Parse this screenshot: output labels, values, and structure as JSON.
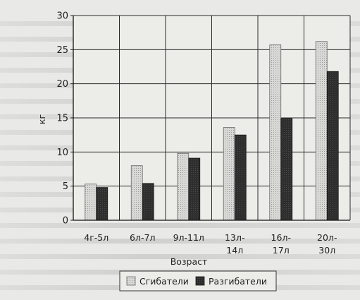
{
  "chart_data": {
    "type": "bar",
    "title": "",
    "xlabel": "Возраст",
    "ylabel": "кг",
    "ylim": [
      0,
      30
    ],
    "yticks": [
      0,
      5,
      10,
      15,
      20,
      25,
      30
    ],
    "grid": true,
    "legend": "bottom-right",
    "categories": [
      [
        "4г-5л"
      ],
      [
        "6л-7л"
      ],
      [
        "9л-11л"
      ],
      [
        "13л-",
        "14л"
      ],
      [
        "16л-",
        "17л"
      ],
      [
        "20л-",
        "30л"
      ]
    ],
    "series": [
      {
        "name": "Сгибатели",
        "color": "#cfcfcf",
        "pattern": "dotted-light",
        "values": [
          5.3,
          8.0,
          9.8,
          13.6,
          25.7,
          26.2
        ]
      },
      {
        "name": "Разгибатели",
        "color": "#333333",
        "pattern": "solid-dark",
        "values": [
          4.8,
          5.4,
          9.1,
          12.5,
          14.9,
          21.8
        ]
      }
    ]
  }
}
